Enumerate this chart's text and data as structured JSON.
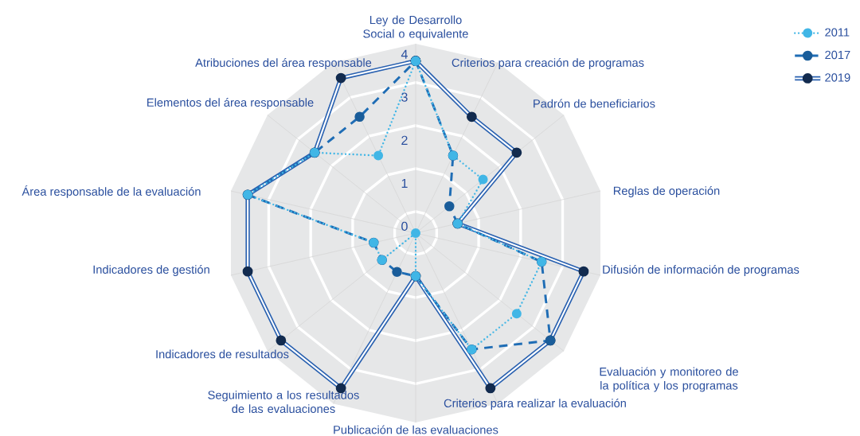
{
  "chart_data": {
    "type": "radar",
    "categories": [
      "Ley de Desarrollo Social o equivalente",
      "Criterios para creación de programas",
      "Padrón de beneficiarios",
      "Reglas de operación",
      "Difusión de información de programas",
      "Evaluación y monitoreo de la política y los programas",
      "Criterios para realizar la evaluación",
      "Publicación de las evaluaciones",
      "Seguimiento a los resultados de las evaluaciones",
      "Indicadores de resultados",
      "Indicadores de gestión",
      "Área responsable de la evaluación",
      "Elementos del área responsable",
      "Atribuciones del área responsable"
    ],
    "series": [
      {
        "name": "2011",
        "color": "#41b6e6",
        "line_style": "dotted",
        "values": [
          4,
          2,
          2,
          1,
          3,
          3,
          3,
          1,
          0,
          1,
          1,
          4,
          3,
          2
        ]
      },
      {
        "name": "2017",
        "color": "#1f6db5",
        "line_style": "dashed",
        "values": [
          4,
          2,
          1,
          1,
          3,
          4,
          3,
          1,
          1,
          1,
          1,
          4,
          3,
          3
        ]
      },
      {
        "name": "2019",
        "color": "#2860b0",
        "line_style": "solid",
        "values": [
          4,
          3,
          3,
          1,
          4,
          4,
          4,
          1,
          4,
          4,
          4,
          4,
          3,
          4
        ]
      }
    ],
    "ylim": [
      0,
      4.4
    ],
    "yticks": [
      0,
      1,
      2,
      3,
      4
    ],
    "grid": true,
    "legend": "top right",
    "marker": "circle"
  }
}
